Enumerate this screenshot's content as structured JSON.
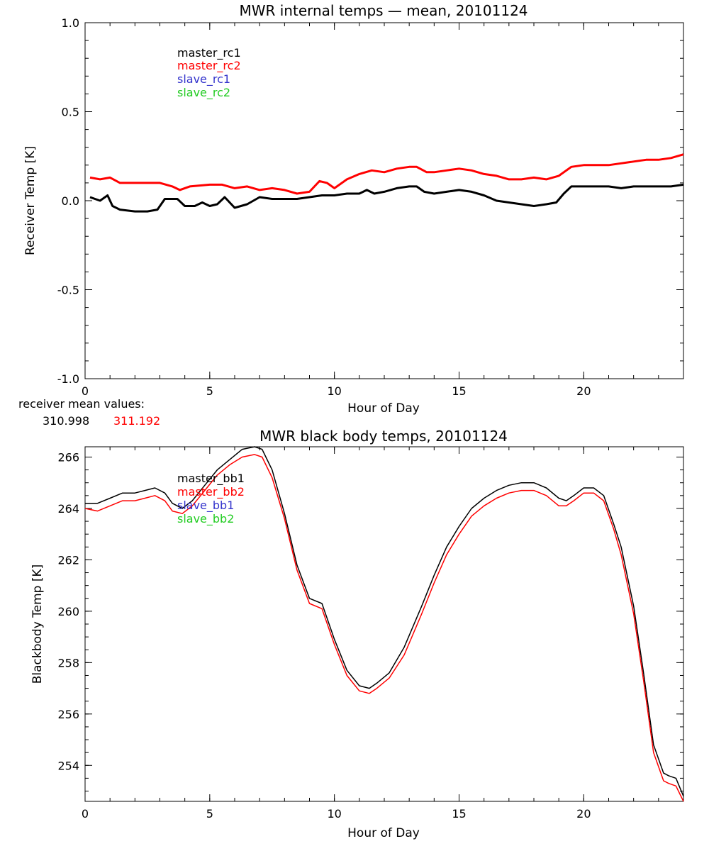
{
  "chart_data": [
    {
      "type": "line",
      "title": "MWR internal temps — mean, 20101124",
      "xlabel": "Hour of Day",
      "ylabel": "Receiver Temp [K]",
      "xlim": [
        0,
        24
      ],
      "ylim": [
        -1.0,
        1.0
      ],
      "xticks": [
        "0",
        "5",
        "10",
        "15",
        "20"
      ],
      "xtick_values": [
        0,
        5,
        10,
        15,
        20
      ],
      "yticks": [
        "-1.0",
        "-0.5",
        "0.0",
        "0.5",
        "1.0"
      ],
      "ytick_values": [
        -1.0,
        -0.5,
        0.0,
        0.5,
        1.0
      ],
      "legend": [
        {
          "label": "master_rc1",
          "color": "#000000"
        },
        {
          "label": "master_rc2",
          "color": "#ff0000"
        },
        {
          "label": "slave_rc1",
          "color": "#3333cc"
        },
        {
          "label": "slave_rc2",
          "color": "#22cc22"
        }
      ],
      "series": [
        {
          "name": "master_rc1",
          "color": "#000000",
          "x": [
            0.2,
            0.6,
            0.9,
            1.1,
            1.4,
            2.0,
            2.5,
            2.9,
            3.2,
            3.7,
            4.0,
            4.4,
            4.7,
            5.0,
            5.3,
            5.6,
            6.0,
            6.5,
            7.0,
            7.5,
            8.0,
            8.5,
            9.0,
            9.5,
            10.0,
            10.5,
            11.0,
            11.3,
            11.6,
            12.0,
            12.5,
            13.0,
            13.3,
            13.6,
            14.0,
            14.5,
            15.0,
            15.5,
            16.0,
            16.5,
            17.0,
            17.5,
            18.0,
            18.5,
            18.9,
            19.2,
            19.5,
            20.0,
            20.5,
            21.0,
            21.5,
            22.0,
            22.5,
            23.0,
            23.5,
            24.0
          ],
          "y": [
            0.02,
            0.0,
            0.03,
            -0.03,
            -0.05,
            -0.06,
            -0.06,
            -0.05,
            0.01,
            0.01,
            -0.03,
            -0.03,
            -0.01,
            -0.03,
            -0.02,
            0.02,
            -0.04,
            -0.02,
            0.02,
            0.01,
            0.01,
            0.01,
            0.02,
            0.03,
            0.03,
            0.04,
            0.04,
            0.06,
            0.04,
            0.05,
            0.07,
            0.08,
            0.08,
            0.05,
            0.04,
            0.05,
            0.06,
            0.05,
            0.03,
            0.0,
            -0.01,
            -0.02,
            -0.03,
            -0.02,
            -0.01,
            0.04,
            0.08,
            0.08,
            0.08,
            0.08,
            0.07,
            0.08,
            0.08,
            0.08,
            0.08,
            0.09
          ]
        },
        {
          "name": "master_rc2",
          "color": "#ff0000",
          "x": [
            0.2,
            0.6,
            1.0,
            1.4,
            2.0,
            2.5,
            3.0,
            3.5,
            3.8,
            4.2,
            5.0,
            5.5,
            6.0,
            6.5,
            7.0,
            7.5,
            8.0,
            8.5,
            9.0,
            9.4,
            9.7,
            10.0,
            10.5,
            11.0,
            11.5,
            12.0,
            12.5,
            13.0,
            13.3,
            13.7,
            14.0,
            14.5,
            15.0,
            15.5,
            16.0,
            16.5,
            17.0,
            17.5,
            18.0,
            18.5,
            19.0,
            19.5,
            20.0,
            20.5,
            21.0,
            21.5,
            22.0,
            22.5,
            23.0,
            23.5,
            24.0
          ],
          "y": [
            0.13,
            0.12,
            0.13,
            0.1,
            0.1,
            0.1,
            0.1,
            0.08,
            0.06,
            0.08,
            0.09,
            0.09,
            0.07,
            0.08,
            0.06,
            0.07,
            0.06,
            0.04,
            0.05,
            0.11,
            0.1,
            0.07,
            0.12,
            0.15,
            0.17,
            0.16,
            0.18,
            0.19,
            0.19,
            0.16,
            0.16,
            0.17,
            0.18,
            0.17,
            0.15,
            0.14,
            0.12,
            0.12,
            0.13,
            0.12,
            0.14,
            0.19,
            0.2,
            0.2,
            0.2,
            0.21,
            0.22,
            0.23,
            0.23,
            0.24,
            0.26
          ]
        }
      ],
      "annotation": {
        "label": "receiver mean values:",
        "values": [
          {
            "text": "310.998",
            "color": "#000000"
          },
          {
            "text": "311.192",
            "color": "#ff0000"
          }
        ]
      }
    },
    {
      "type": "line",
      "title": "MWR black body temps, 20101124",
      "xlabel": "Hour of Day",
      "ylabel": "Blackbody Temp [K]",
      "xlim": [
        0,
        24
      ],
      "ylim": [
        252.6,
        266.4
      ],
      "xticks": [
        "0",
        "5",
        "10",
        "15",
        "20"
      ],
      "xtick_values": [
        0,
        5,
        10,
        15,
        20
      ],
      "yticks": [
        "254",
        "256",
        "258",
        "260",
        "262",
        "264",
        "266"
      ],
      "ytick_values": [
        254,
        256,
        258,
        260,
        262,
        264,
        266
      ],
      "legend": [
        {
          "label": "master_bb1",
          "color": "#000000"
        },
        {
          "label": "master_bb2",
          "color": "#ff0000"
        },
        {
          "label": "slave_bb1",
          "color": "#3333cc"
        },
        {
          "label": "slave_bb2",
          "color": "#22cc22"
        }
      ],
      "series": [
        {
          "name": "master_bb1",
          "color": "#000000",
          "x": [
            0,
            0.5,
            1.0,
            1.5,
            2.0,
            2.4,
            2.8,
            3.2,
            3.5,
            3.9,
            4.3,
            4.8,
            5.3,
            5.8,
            6.3,
            6.8,
            7.1,
            7.5,
            8.0,
            8.5,
            9.0,
            9.5,
            10.0,
            10.5,
            11.0,
            11.4,
            11.7,
            12.2,
            12.8,
            13.5,
            14.0,
            14.5,
            15.0,
            15.5,
            16.0,
            16.5,
            17.0,
            17.5,
            18.0,
            18.5,
            19.0,
            19.3,
            19.6,
            20.0,
            20.4,
            20.8,
            21.2,
            21.5,
            22.0,
            22.4,
            22.8,
            23.2,
            23.4,
            23.7,
            24.0
          ],
          "y": [
            264.2,
            264.2,
            264.4,
            264.6,
            264.6,
            264.7,
            264.8,
            264.6,
            264.2,
            264.0,
            264.3,
            264.9,
            265.5,
            265.9,
            266.3,
            266.4,
            266.3,
            265.5,
            263.8,
            261.8,
            260.5,
            260.3,
            258.9,
            257.7,
            257.1,
            257.0,
            257.2,
            257.6,
            258.6,
            260.2,
            261.4,
            262.5,
            263.3,
            264.0,
            264.4,
            264.7,
            264.9,
            265.0,
            265.0,
            264.8,
            264.4,
            264.3,
            264.5,
            264.8,
            264.8,
            264.5,
            263.4,
            262.5,
            260.2,
            257.6,
            254.8,
            253.7,
            253.6,
            253.5,
            252.8
          ]
        },
        {
          "name": "master_bb2",
          "color": "#ff0000",
          "x": [
            0,
            0.5,
            1.0,
            1.5,
            2.0,
            2.4,
            2.8,
            3.2,
            3.5,
            3.9,
            4.3,
            4.8,
            5.3,
            5.8,
            6.3,
            6.8,
            7.1,
            7.5,
            8.0,
            8.5,
            9.0,
            9.5,
            10.0,
            10.5,
            11.0,
            11.4,
            11.7,
            12.2,
            12.8,
            13.5,
            14.0,
            14.5,
            15.0,
            15.5,
            16.0,
            16.5,
            17.0,
            17.5,
            18.0,
            18.5,
            19.0,
            19.3,
            19.6,
            20.0,
            20.4,
            20.8,
            21.2,
            21.5,
            22.0,
            22.4,
            22.8,
            23.2,
            23.4,
            23.7,
            24.0
          ],
          "y": [
            264.0,
            263.9,
            264.1,
            264.3,
            264.3,
            264.4,
            264.5,
            264.3,
            263.9,
            263.8,
            264.1,
            264.7,
            265.3,
            265.7,
            266.0,
            266.1,
            266.0,
            265.2,
            263.6,
            261.6,
            260.3,
            260.1,
            258.7,
            257.5,
            256.9,
            256.8,
            257.0,
            257.4,
            258.3,
            259.9,
            261.1,
            262.2,
            263.0,
            263.7,
            264.1,
            264.4,
            264.6,
            264.7,
            264.7,
            264.5,
            264.1,
            264.1,
            264.3,
            264.6,
            264.6,
            264.3,
            263.2,
            262.2,
            259.9,
            257.3,
            254.5,
            253.4,
            253.3,
            253.2,
            252.6
          ]
        }
      ]
    }
  ]
}
